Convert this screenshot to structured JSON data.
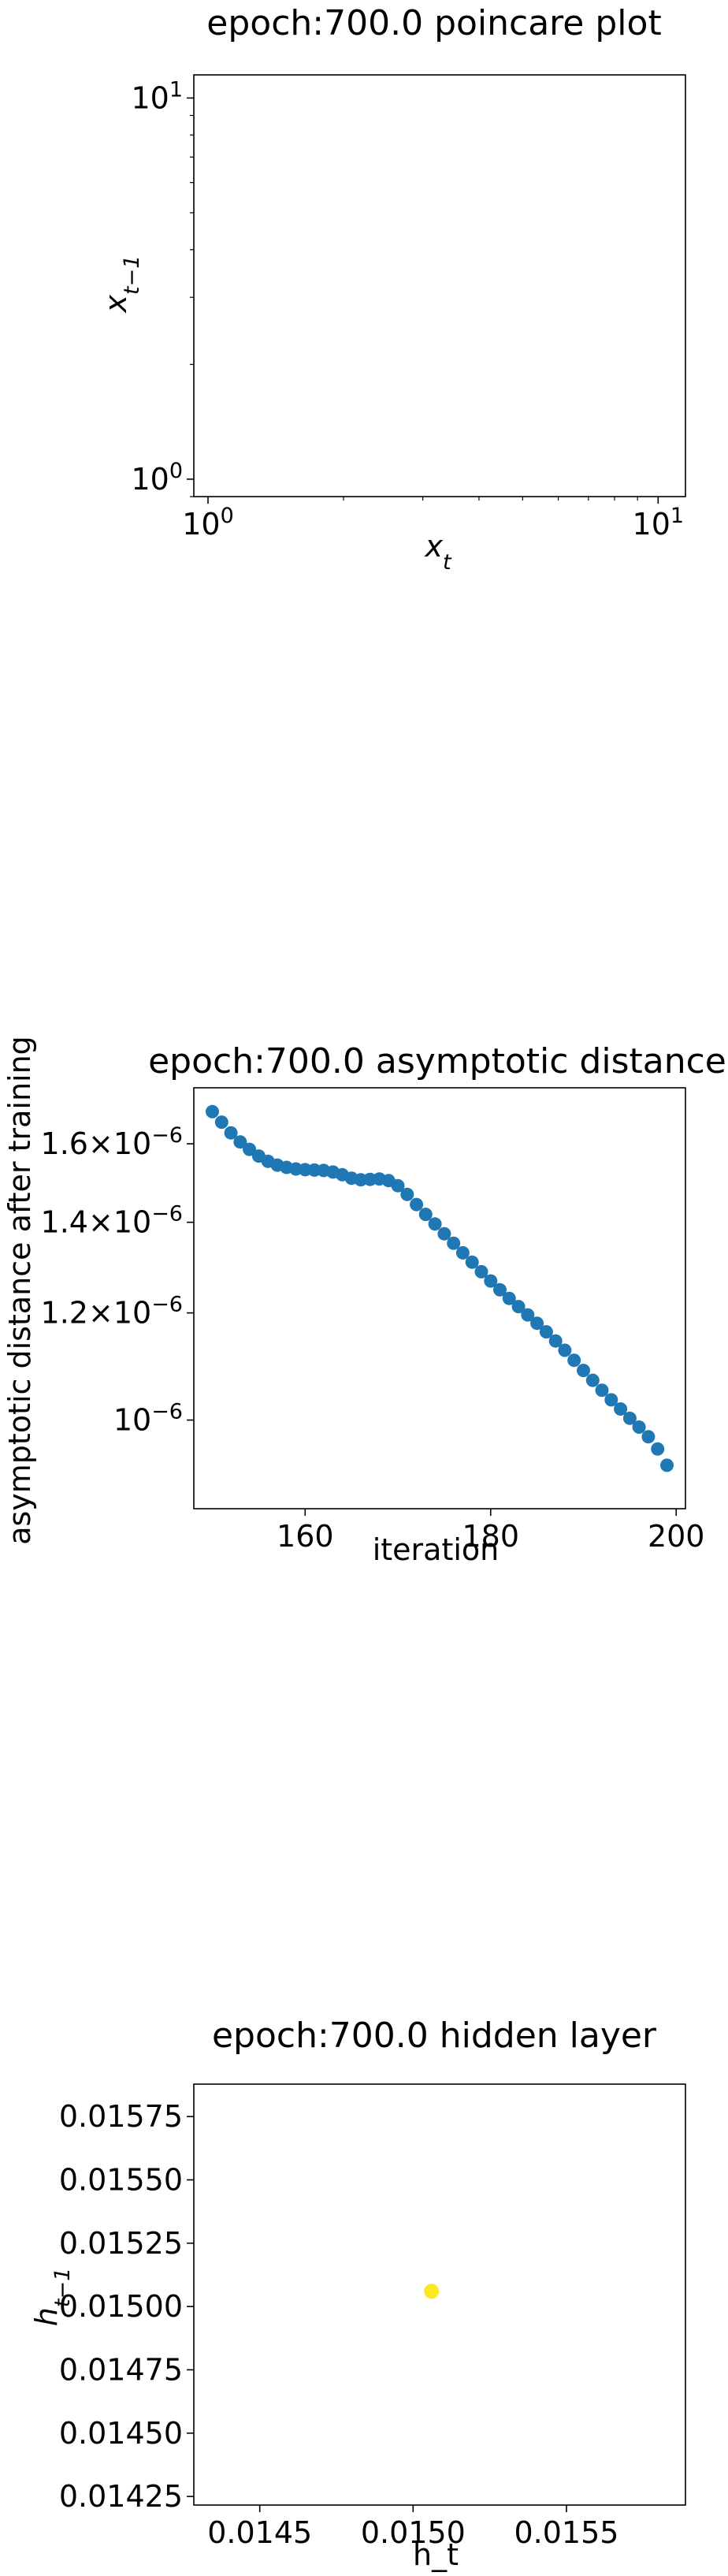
{
  "chart_data": [
    {
      "type": "scatter",
      "title": "epoch:700.0 poincare plot",
      "xlabel": "x_t",
      "ylabel": "x_{t-1}",
      "xscale": "log",
      "yscale": "log",
      "xlim": [
        0.93,
        11.5
      ],
      "ylim": [
        0.9,
        11.5
      ],
      "xticks": [
        {
          "value": 1,
          "label": "10^0"
        },
        {
          "value": 10,
          "label": "10^1"
        }
      ],
      "yticks": [
        {
          "value": 1,
          "label": "10^0"
        },
        {
          "value": 10,
          "label": "10^1"
        }
      ],
      "points": [],
      "grid": false
    },
    {
      "type": "scatter",
      "title": "epoch:700.0 asymptotic distance",
      "xlabel": "iteration",
      "ylabel": "asymptotic distance after training",
      "yscale": "log",
      "xlim": [
        148,
        201
      ],
      "ylim": [
        8.6e-07,
        1.76e-06
      ],
      "xticks": [
        {
          "value": 160,
          "label": "160"
        },
        {
          "value": 180,
          "label": "180"
        },
        {
          "value": 200,
          "label": "200"
        }
      ],
      "yticks": [
        {
          "value": 1.6e-06,
          "label": "1.6×10^-6"
        },
        {
          "value": 1.4e-06,
          "label": "1.4×10^-6"
        },
        {
          "value": 1.2e-06,
          "label": "1.2×10^-6"
        },
        {
          "value": 1e-06,
          "label": "10^-6"
        }
      ],
      "color": "#1f77b4",
      "x": [
        150,
        151,
        152,
        153,
        154,
        155,
        156,
        157,
        158,
        159,
        160,
        161,
        162,
        163,
        164,
        165,
        166,
        167,
        168,
        169,
        170,
        171,
        172,
        173,
        174,
        175,
        176,
        177,
        178,
        179,
        180,
        181,
        182,
        183,
        184,
        185,
        186,
        187,
        188,
        189,
        190,
        191,
        192,
        193,
        194,
        195,
        196,
        197,
        198,
        199
      ],
      "y": [
        1.69e-06,
        1.66e-06,
        1.63e-06,
        1.605e-06,
        1.585e-06,
        1.567e-06,
        1.553e-06,
        1.543e-06,
        1.537e-06,
        1.533e-06,
        1.531e-06,
        1.53e-06,
        1.529e-06,
        1.525e-06,
        1.518e-06,
        1.509e-06,
        1.505e-06,
        1.506e-06,
        1.507e-06,
        1.503e-06,
        1.49e-06,
        1.468e-06,
        1.443e-06,
        1.419e-06,
        1.396e-06,
        1.373e-06,
        1.351e-06,
        1.329e-06,
        1.308e-06,
        1.287e-06,
        1.267e-06,
        1.248e-06,
        1.23e-06,
        1.213e-06,
        1.196e-06,
        1.179e-06,
        1.162e-06,
        1.144e-06,
        1.126e-06,
        1.107e-06,
        1.088e-06,
        1.07e-06,
        1.052e-06,
        1.035e-06,
        1.019e-06,
        1.003e-06,
        9.88e-07,
        9.72e-07,
        9.52e-07,
        9.26e-07
      ],
      "grid": false
    },
    {
      "type": "scatter",
      "title": "epoch:700.0 hidden layer",
      "xlabel": "h_t",
      "ylabel": "h_{t-1}",
      "xlim": [
        0.014285,
        0.015888
      ],
      "ylim": [
        0.014216,
        0.015878
      ],
      "xticks": [
        {
          "value": 0.0145,
          "label": "0.0145"
        },
        {
          "value": 0.015,
          "label": "0.0150"
        },
        {
          "value": 0.0155,
          "label": "0.0155"
        }
      ],
      "yticks": [
        {
          "value": 0.01425,
          "label": "0.01425"
        },
        {
          "value": 0.0145,
          "label": "0.01450"
        },
        {
          "value": 0.01475,
          "label": "0.01475"
        },
        {
          "value": 0.015,
          "label": "0.01500"
        },
        {
          "value": 0.01525,
          "label": "0.01525"
        },
        {
          "value": 0.0155,
          "label": "0.01550"
        },
        {
          "value": 0.01575,
          "label": "0.01575"
        }
      ],
      "color": "#fde725",
      "x": [
        0.01506
      ],
      "y": [
        0.01506
      ],
      "grid": false
    }
  ]
}
